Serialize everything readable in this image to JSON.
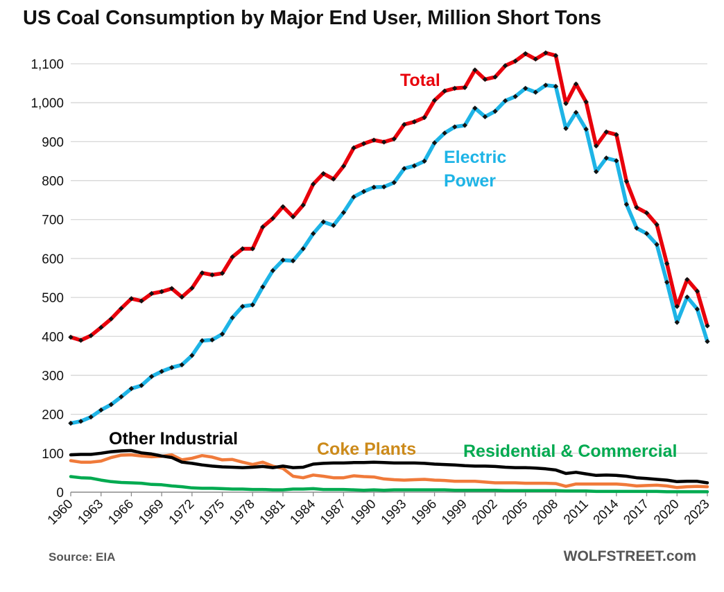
{
  "title": "US Coal Consumption by Major End User, Million Short Tons",
  "source": "Source: EIA",
  "brand": "WOLFSTREET.com",
  "chart_data": {
    "type": "line",
    "title": "US Coal Consumption by Major End User, Million Short Tons",
    "xlabel": "",
    "ylabel": "",
    "ylim": [
      0,
      1100
    ],
    "yticks": [
      0,
      100,
      200,
      300,
      400,
      500,
      600,
      700,
      800,
      900,
      1000,
      1100
    ],
    "ytick_labels": [
      "0",
      "100",
      "200",
      "300",
      "400",
      "500",
      "600",
      "700",
      "800",
      "900",
      "1,000",
      "1,100"
    ],
    "xtick_labels": [
      "1960",
      "1963",
      "1966",
      "1969",
      "1972",
      "1975",
      "1978",
      "1981",
      "1984",
      "1987",
      "1990",
      "1993",
      "1996",
      "1999",
      "2002",
      "2005",
      "2008",
      "2011",
      "2014",
      "2017",
      "2020",
      "2023"
    ],
    "grid": "horizontal",
    "x": [
      1960,
      1961,
      1962,
      1963,
      1964,
      1965,
      1966,
      1967,
      1968,
      1969,
      1970,
      1971,
      1972,
      1973,
      1974,
      1975,
      1976,
      1977,
      1978,
      1979,
      1980,
      1981,
      1982,
      1983,
      1984,
      1985,
      1986,
      1987,
      1988,
      1989,
      1990,
      1991,
      1992,
      1993,
      1994,
      1995,
      1996,
      1997,
      1998,
      1999,
      2000,
      2001,
      2002,
      2003,
      2004,
      2005,
      2006,
      2007,
      2008,
      2009,
      2010,
      2011,
      2012,
      2013,
      2014,
      2015,
      2016,
      2017,
      2018,
      2019,
      2020,
      2021,
      2022,
      2023
    ],
    "series": [
      {
        "name": "Total",
        "color": "#e8000b",
        "label_color": "#e8000b",
        "markers": true,
        "values": [
          398,
          390,
          402,
          423,
          445,
          472,
          497,
          491,
          510,
          515,
          523,
          501,
          524,
          563,
          558,
          562,
          604,
          625,
          625,
          681,
          703,
          733,
          707,
          737,
          791,
          818,
          804,
          837,
          884,
          895,
          904,
          899,
          907,
          944,
          951,
          962,
          1006,
          1030,
          1037,
          1039,
          1084,
          1060,
          1066,
          1095,
          1107,
          1126,
          1112,
          1128,
          1121,
          998,
          1048,
          1002,
          889,
          925,
          918,
          798,
          731,
          717,
          687,
          587,
          477,
          546,
          516,
          427
        ]
      },
      {
        "name": "Electric\nPower",
        "color": "#1eb4e6",
        "label_color": "#1eb4e6",
        "markers": true,
        "values": [
          177,
          182,
          193,
          211,
          225,
          245,
          266,
          274,
          297,
          310,
          320,
          327,
          351,
          389,
          391,
          406,
          448,
          477,
          481,
          527,
          569,
          596,
          594,
          625,
          664,
          694,
          685,
          718,
          758,
          772,
          783,
          784,
          795,
          831,
          838,
          850,
          897,
          922,
          938,
          942,
          986,
          964,
          978,
          1005,
          1016,
          1037,
          1027,
          1045,
          1042,
          934,
          975,
          932,
          823,
          858,
          851,
          739,
          678,
          664,
          636,
          539,
          436,
          501,
          470,
          387
        ]
      },
      {
        "name": "Other Industrial",
        "color": "#000000",
        "label_color": "#000000",
        "markers": false,
        "values": [
          96,
          97,
          97,
          100,
          104,
          106,
          107,
          101,
          98,
          93,
          89,
          77,
          74,
          70,
          67,
          65,
          64,
          63,
          64,
          66,
          63,
          67,
          63,
          64,
          72,
          74,
          75,
          75,
          76,
          76,
          77,
          76,
          75,
          75,
          75,
          74,
          72,
          71,
          70,
          68,
          67,
          67,
          66,
          64,
          63,
          63,
          62,
          60,
          57,
          48,
          51,
          47,
          43,
          44,
          43,
          41,
          37,
          35,
          33,
          31,
          27,
          28,
          28,
          24
        ]
      },
      {
        "name": "Coke Plants",
        "color": "#f07a3a",
        "label_color": "#cc8a1a",
        "markers": false,
        "values": [
          81,
          77,
          77,
          80,
          89,
          95,
          96,
          93,
          91,
          92,
          96,
          83,
          87,
          94,
          90,
          83,
          84,
          77,
          71,
          77,
          67,
          61,
          41,
          37,
          44,
          41,
          37,
          37,
          42,
          40,
          39,
          34,
          32,
          31,
          32,
          33,
          31,
          30,
          28,
          28,
          28,
          26,
          24,
          24,
          24,
          23,
          23,
          23,
          22,
          15,
          21,
          21,
          21,
          21,
          21,
          19,
          16,
          17,
          18,
          16,
          12,
          14,
          15,
          14
        ]
      },
      {
        "name": "Residential & Commercial",
        "color": "#00aa50",
        "label_color": "#00aa50",
        "markers": false,
        "values": [
          40,
          37,
          36,
          31,
          27,
          25,
          24,
          23,
          20,
          19,
          16,
          14,
          11,
          10,
          10,
          9,
          8,
          8,
          7,
          7,
          6,
          6,
          8,
          8,
          9,
          7,
          7,
          7,
          6,
          5,
          6,
          5,
          6,
          6,
          6,
          6,
          6,
          6,
          5,
          5,
          5,
          5,
          5,
          4,
          4,
          4,
          4,
          4,
          4,
          3,
          3,
          3,
          2,
          2,
          2,
          2,
          2,
          2,
          2,
          1,
          1,
          1,
          1,
          1
        ]
      }
    ]
  }
}
